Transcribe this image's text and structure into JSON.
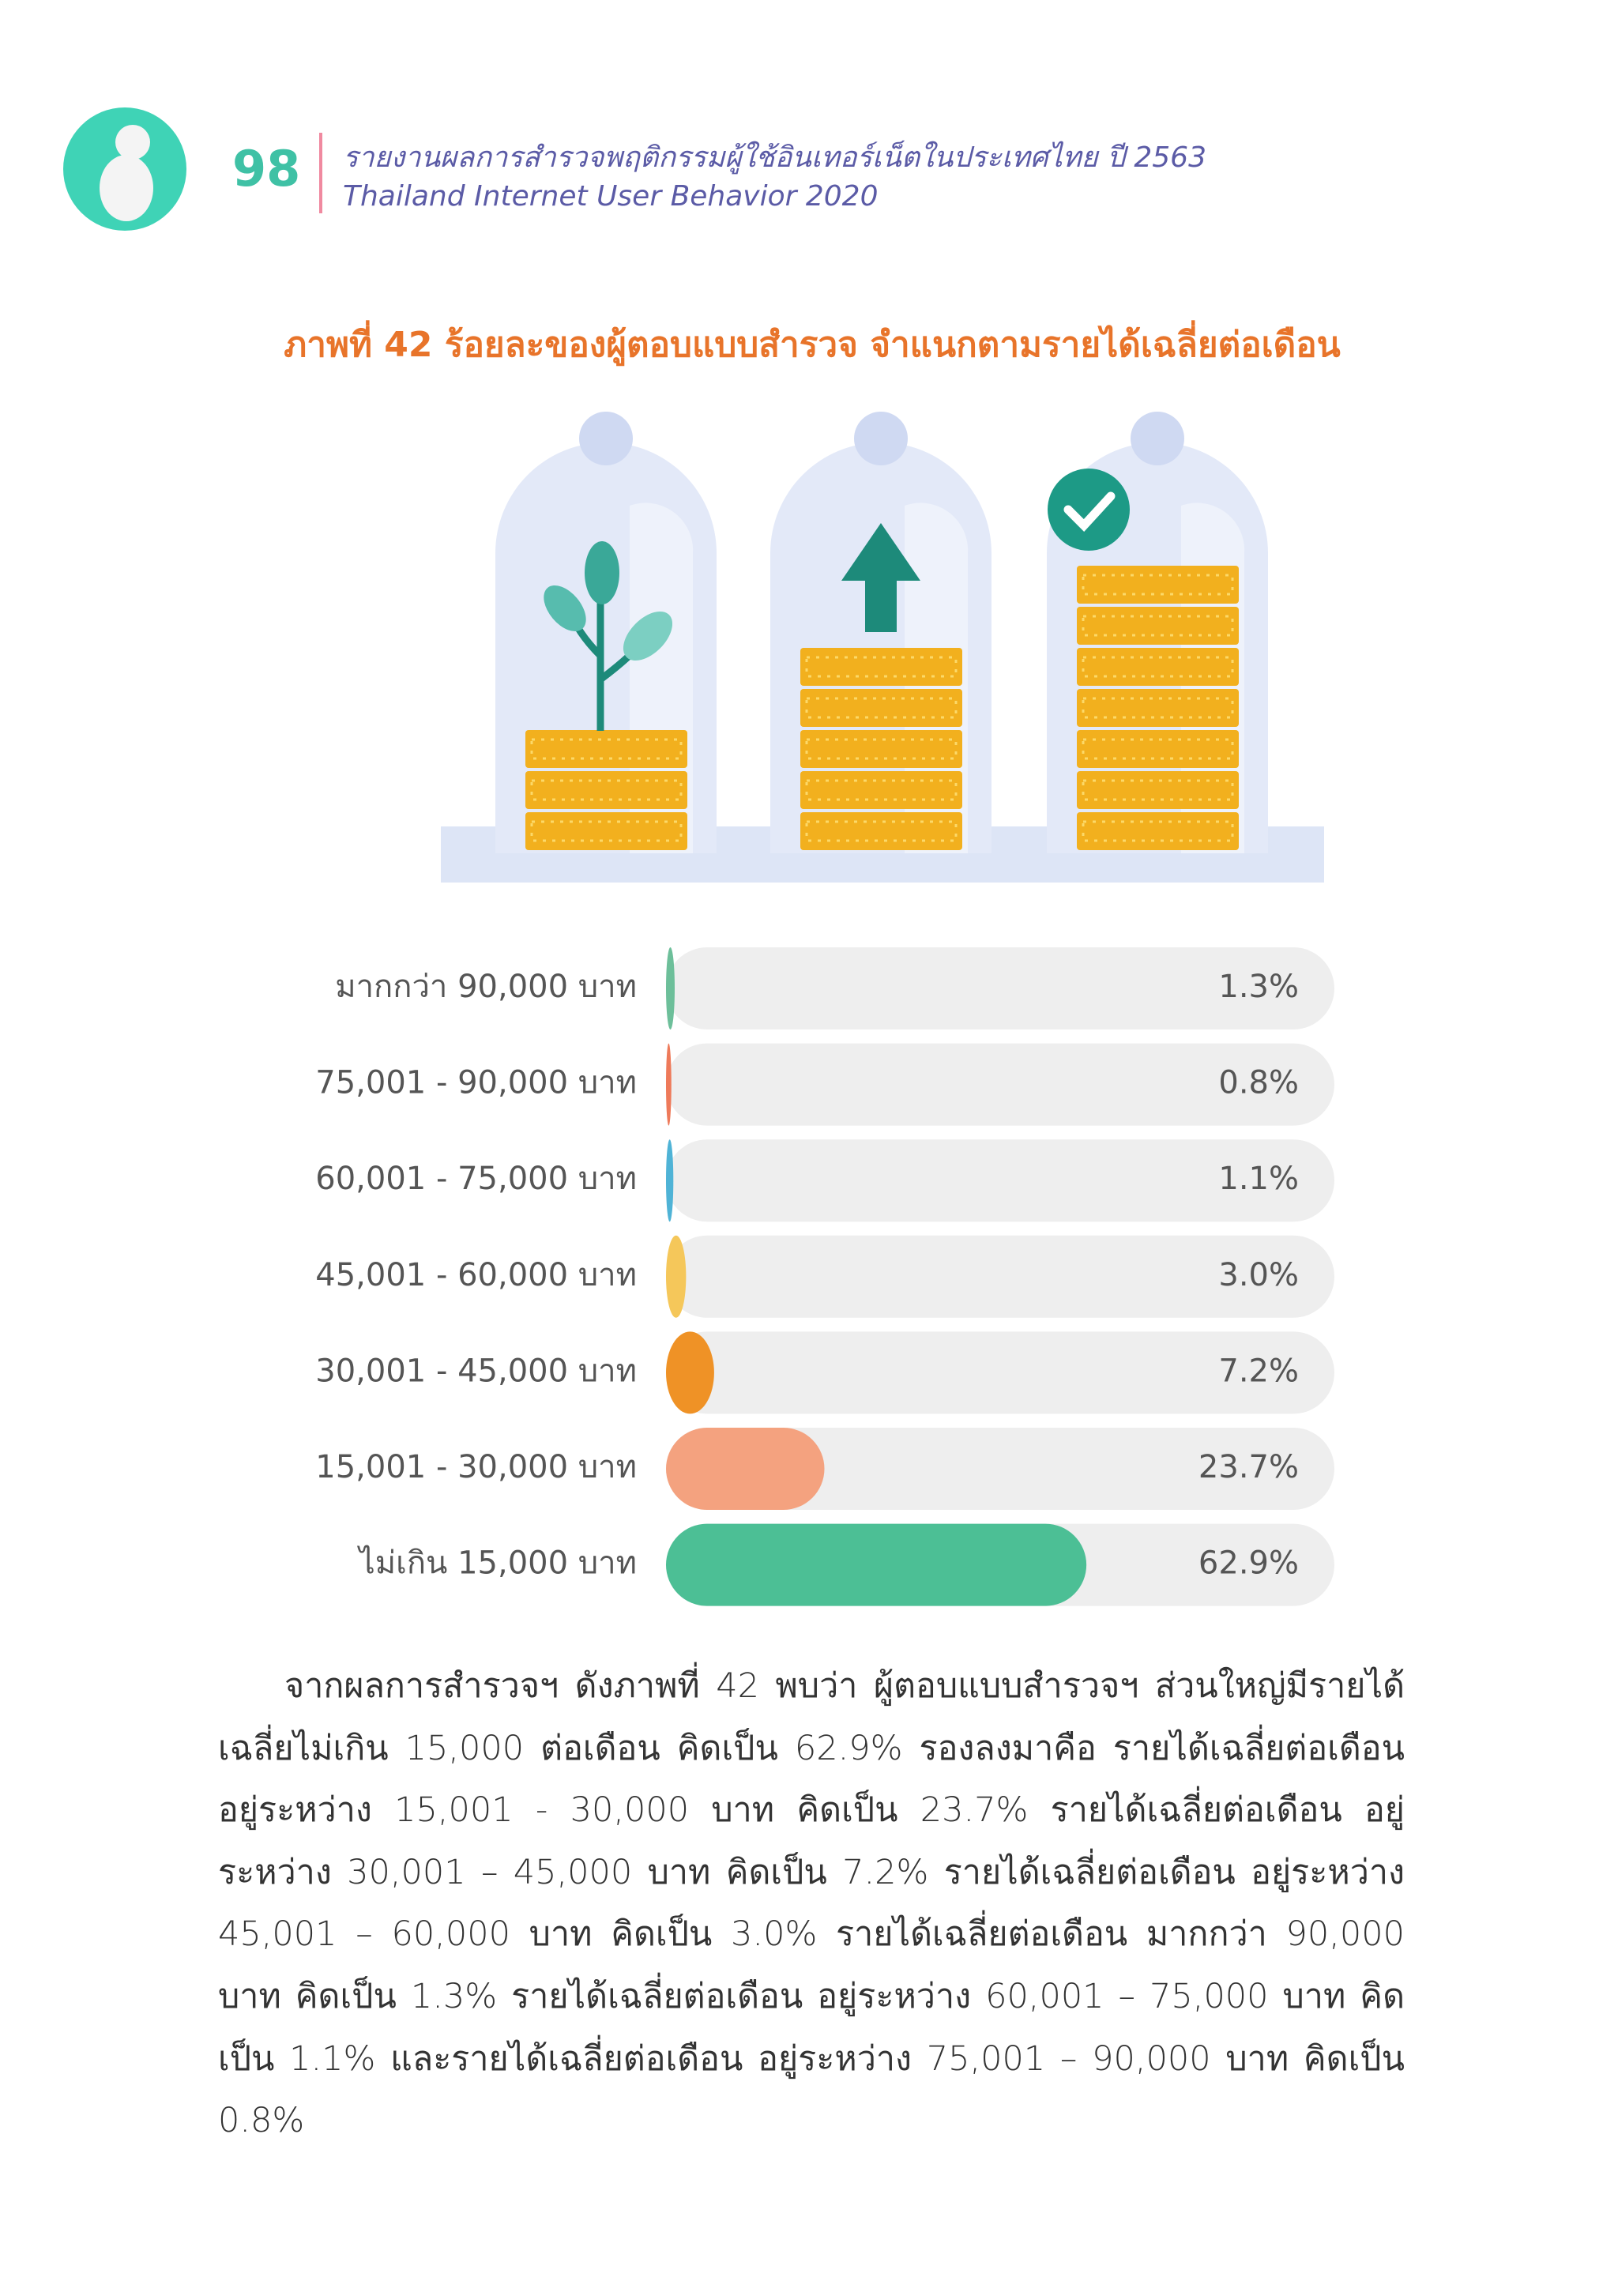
{
  "header": {
    "page_number": "98",
    "title_th": "รายงานผลการสำรวจพฤติกรรมผู้ใช้อินเทอร์เน็ตในประเทศไทย ปี 2563",
    "title_en": "Thailand Internet User Behavior 2020"
  },
  "chart_data": {
    "type": "bar",
    "orientation": "horizontal",
    "title": "ภาพที่ 42 ร้อยละของผู้ตอบแบบสำรวจ จำแนกตามรายได้เฉลี่ยต่อเดือน",
    "categories": [
      "มากกว่า 90,000 บาท",
      "75,001 - 90,000 บาท",
      "60,001 - 75,000 บาท",
      "45,001 - 60,000 บาท",
      "30,001 - 45,000 บาท",
      "15,001 - 30,000 บาท",
      "ไม่เกิน 15,000 บาท"
    ],
    "values": [
      1.3,
      0.8,
      1.1,
      3.0,
      7.2,
      23.7,
      62.9
    ],
    "value_labels": [
      "1.3%",
      "0.8%",
      "1.1%",
      "3.0%",
      "7.2%",
      "23.7%",
      "62.9%"
    ],
    "colors": [
      "#6dbf9a",
      "#ee7a5a",
      "#4fb3d6",
      "#f5c75a",
      "#ef9226",
      "#f4a27f",
      "#4cbf95"
    ],
    "xlim": [
      0,
      100
    ]
  },
  "body": {
    "paragraph": "จากผลการสำรวจฯ ดังภาพที่ 42 พบว่า ผู้ตอบแบบสำรวจฯ ส่วนใหญ่มีรายได้เฉลี่ยไม่เกิน 15,000 ต่อเดือน คิดเป็น 62.9% รองลงมาคือ รายได้เฉลี่ยต่อเดือน อยู่ระหว่าง 15,001 - 30,000 บาท คิดเป็น 23.7% รายได้เฉลี่ยต่อเดือน อยู่ระหว่าง 30,001 – 45,000 บาท คิดเป็น 7.2% รายได้เฉลี่ยต่อเดือน อยู่ระหว่าง 45,001 – 60,000 บาท คิดเป็น 3.0% รายได้เฉลี่ยต่อเดือน มากกว่า 90,000 บาท คิดเป็น 1.3% รายได้เฉลี่ยต่อเดือน อยู่ระหว่าง 60,001 – 75,000 บาท คิดเป็น 1.1% และรายได้เฉลี่ยต่อเดือน อยู่ระหว่าง 75,001 – 90,000 บาท คิดเป็น 0.8%"
  }
}
